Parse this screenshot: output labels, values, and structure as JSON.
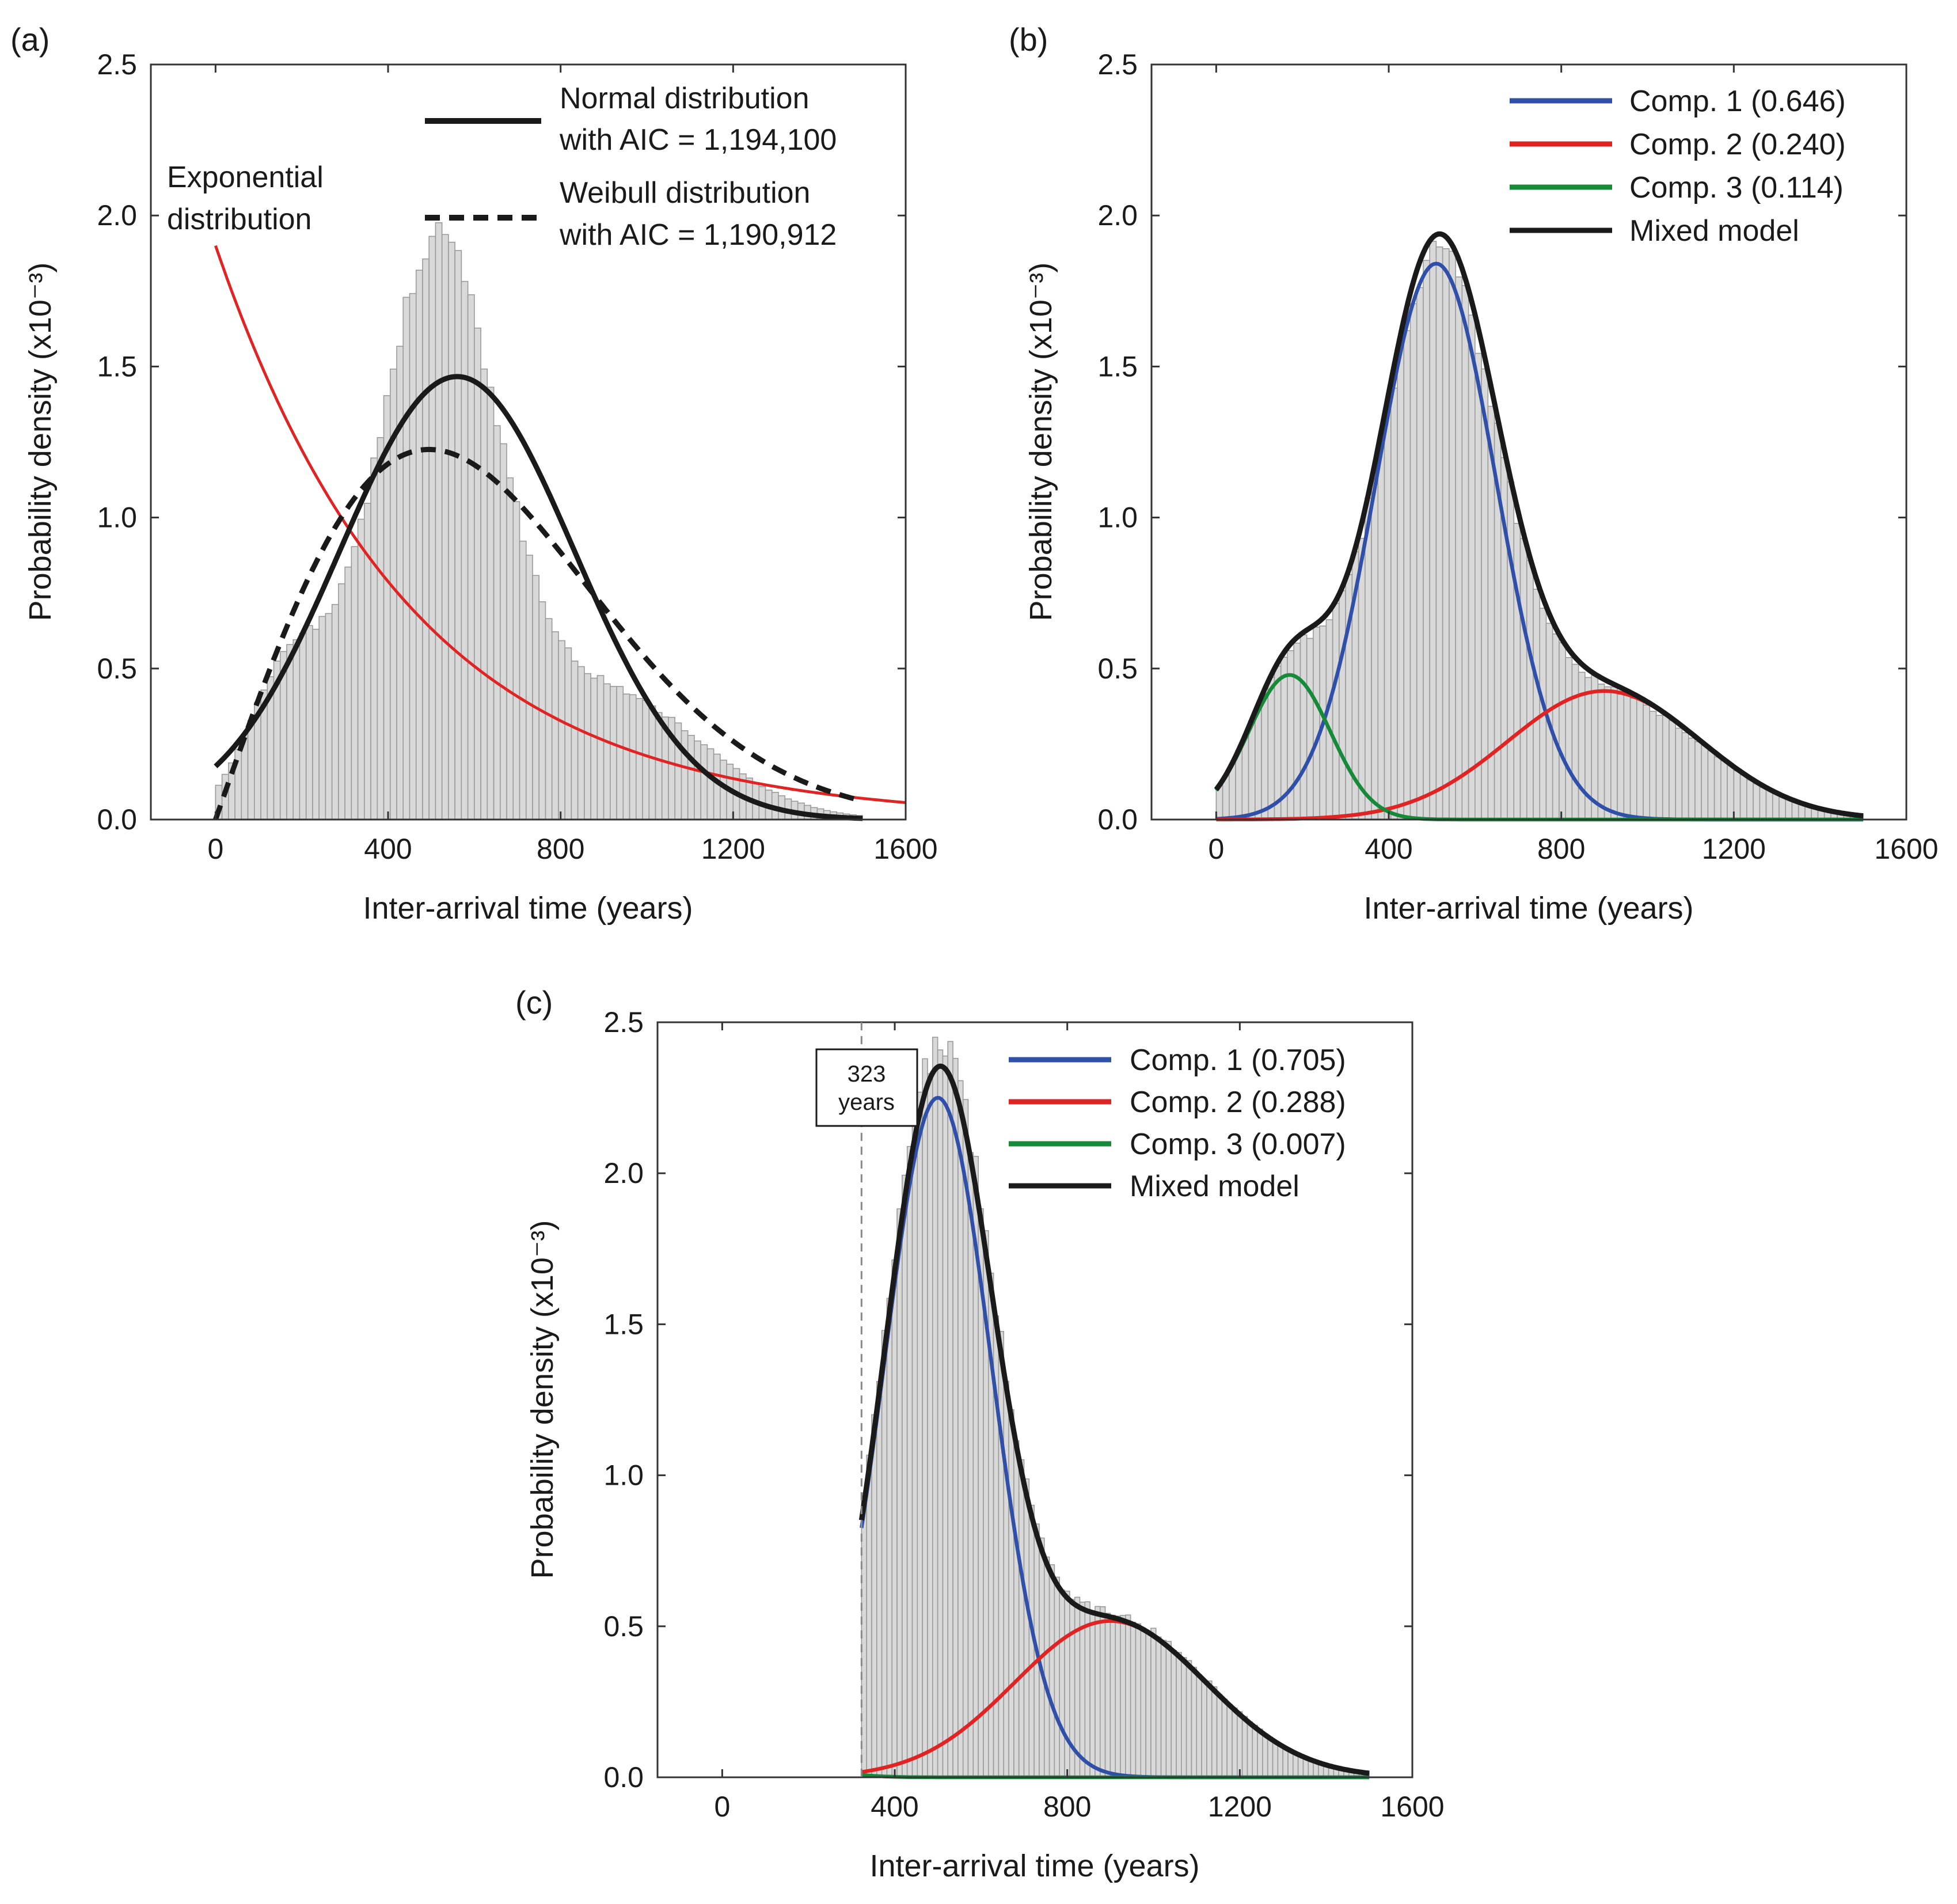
{
  "figure": {
    "panels": [
      "(a)",
      "(b)",
      "(c)"
    ]
  },
  "chart_data": [
    {
      "id": "a",
      "type": "bar",
      "panel_label": "(a)",
      "xlabel": "Inter-arrival time (years)",
      "ylabel": "Probability density (x10⁻³)",
      "xlim": [
        -150,
        1600
      ],
      "ylim": [
        0,
        2.5
      ],
      "xticks": [
        0,
        400,
        800,
        1200,
        1600
      ],
      "yticks": [
        "0.0",
        "0.5",
        "1.0",
        "1.5",
        "2.0",
        "2.5"
      ],
      "histogram": {
        "bin_start": 0,
        "bin_width": 15,
        "bin_count": 100,
        "mixture": {
          "components": [
            {
              "weight": 0.646,
              "mean": 510,
              "sd": 140
            },
            {
              "weight": 0.24,
              "mean": 900,
              "sd": 225
            },
            {
              "weight": 0.114,
              "mean": 170,
              "sd": 95
            }
          ],
          "truncate_min": 0,
          "truncate_max": 1500
        },
        "peak": 1.93
      },
      "annotation": {
        "line1": "Exponential",
        "line2": "distribution"
      },
      "legend": [
        {
          "line1": "Normal distribution",
          "line2": "with AIC = 1,194,100",
          "style": "solid",
          "color": "#1a1a1a"
        },
        {
          "line1": "Weibull distribution",
          "line2": "with AIC = 1,190,912",
          "style": "dashed",
          "color": "#1a1a1a"
        }
      ],
      "curves": [
        {
          "name": "Exponential distribution",
          "kind": "exponential",
          "scale": 1.9,
          "rate": 0.0022,
          "x_range": [
            0,
            1600
          ],
          "color": "#e02424",
          "style": "solid"
        },
        {
          "name": "Normal distribution",
          "kind": "normal",
          "mean": 560,
          "sd": 272,
          "x_range": [
            0,
            1500
          ],
          "color": "#1a1a1a",
          "style": "solid"
        },
        {
          "name": "Weibull distribution",
          "kind": "weibull",
          "k": 2.0,
          "lambda": 700,
          "x_range": [
            0,
            1500
          ],
          "color": "#1a1a1a",
          "style": "dashed"
        }
      ]
    },
    {
      "id": "b",
      "type": "bar",
      "panel_label": "(b)",
      "xlabel": "Inter-arrival time (years)",
      "ylabel": "Probability density (x10⁻³)",
      "xlim": [
        -150,
        1600
      ],
      "ylim": [
        0,
        2.5
      ],
      "xticks": [
        0,
        400,
        800,
        1200,
        1600
      ],
      "yticks": [
        "0.0",
        "0.5",
        "1.0",
        "1.5",
        "2.0",
        "2.5"
      ],
      "histogram": {
        "bin_start": 0,
        "bin_width": 15,
        "bin_count": 100,
        "mixture": {
          "components": [
            {
              "weight": 0.646,
              "mean": 510,
              "sd": 140
            },
            {
              "weight": 0.24,
              "mean": 900,
              "sd": 225
            },
            {
              "weight": 0.114,
              "mean": 170,
              "sd": 95
            }
          ],
          "truncate_min": 0,
          "truncate_max": 1500
        },
        "peak": 1.88
      },
      "legend": [
        {
          "label": "Comp. 1 (0.646)",
          "color": "#2f4fa8"
        },
        {
          "label": "Comp. 2 (0.240)",
          "color": "#e02424"
        },
        {
          "label": "Comp. 3 (0.114)",
          "color": "#178a3a"
        },
        {
          "label": "Mixed model",
          "color": "#1a1a1a"
        }
      ],
      "curves": [
        {
          "name": "Comp. 1",
          "kind": "normal",
          "weight": 0.646,
          "mean": 510,
          "sd": 140,
          "x_range": [
            0,
            1500
          ],
          "color": "#2f4fa8"
        },
        {
          "name": "Comp. 2",
          "kind": "normal",
          "weight": 0.24,
          "mean": 900,
          "sd": 225,
          "x_range": [
            0,
            1500
          ],
          "color": "#e02424"
        },
        {
          "name": "Comp. 3",
          "kind": "normal",
          "weight": 0.114,
          "mean": 170,
          "sd": 95,
          "x_range": [
            0,
            1500
          ],
          "color": "#178a3a"
        },
        {
          "name": "Mixed model",
          "kind": "mixture",
          "x_range": [
            0,
            1500
          ],
          "color": "#1a1a1a"
        }
      ]
    },
    {
      "id": "c",
      "type": "bar",
      "panel_label": "(c)",
      "xlabel": "Inter-arrival time (years)",
      "ylabel": "Probability density (x10⁻³)",
      "xlim": [
        -150,
        1600
      ],
      "ylim": [
        0,
        2.5
      ],
      "xticks": [
        0,
        400,
        800,
        1200,
        1600
      ],
      "yticks": [
        "0.0",
        "0.5",
        "1.0",
        "1.5",
        "2.0",
        "2.5"
      ],
      "cutoff": {
        "x": 323,
        "line1": "323",
        "line2": "years"
      },
      "histogram": {
        "bin_start": 323,
        "bin_width": 11.77,
        "bin_count": 100,
        "mixture": {
          "components": [
            {
              "weight": 0.705,
              "mean": 500,
              "sd": 125
            },
            {
              "weight": 0.288,
              "mean": 900,
              "sd": 222
            },
            {
              "weight": 0.007,
              "mean": 170,
              "sd": 95
            }
          ],
          "truncate_min": 323,
          "truncate_max": 1500
        },
        "peak": 2.43
      },
      "legend": [
        {
          "label": "Comp. 1 (0.705)",
          "color": "#2f4fa8"
        },
        {
          "label": "Comp. 2 (0.288)",
          "color": "#e02424"
        },
        {
          "label": "Comp. 3 (0.007)",
          "color": "#178a3a"
        },
        {
          "label": "Mixed model",
          "color": "#1a1a1a"
        }
      ],
      "curves": [
        {
          "name": "Comp. 1",
          "kind": "normal",
          "weight": 0.705,
          "mean": 500,
          "sd": 125,
          "x_range": [
            323,
            1500
          ],
          "color": "#2f4fa8"
        },
        {
          "name": "Comp. 2",
          "kind": "normal",
          "weight": 0.288,
          "mean": 900,
          "sd": 222,
          "x_range": [
            323,
            1500
          ],
          "color": "#e02424"
        },
        {
          "name": "Comp. 3",
          "kind": "normal",
          "weight": 0.007,
          "mean": 170,
          "sd": 95,
          "x_range": [
            323,
            1500
          ],
          "color": "#178a3a"
        },
        {
          "name": "Mixed model",
          "kind": "mixture",
          "x_range": [
            323,
            1500
          ],
          "color": "#1a1a1a"
        }
      ]
    }
  ]
}
